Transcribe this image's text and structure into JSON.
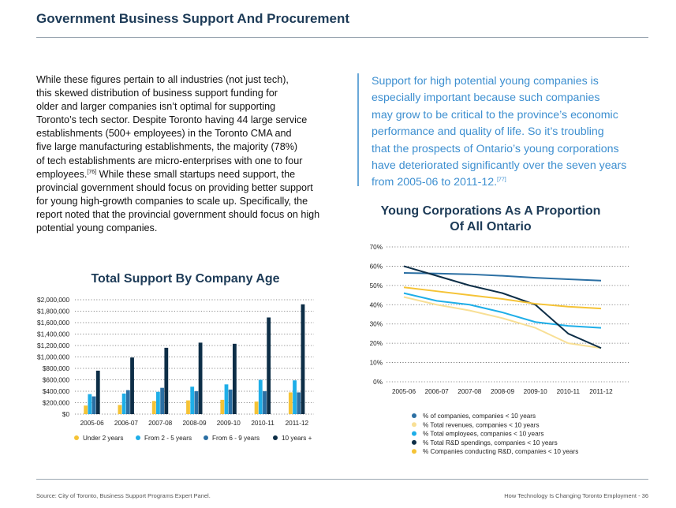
{
  "page": {
    "title": "Government Business Support And Procurement"
  },
  "body": {
    "lines": [
      "While these figures pertain to all industries (not just tech),",
      "this skewed distribution of business support funding for",
      "older and larger companies isn’t optimal for supporting",
      "Toronto’s tech sector. Despite Toronto having 44 large service",
      "establishments (500+ employees) in the Toronto CMA and",
      "five large manufacturing establishments, the majority (78%)",
      "of tech establishments are micro-enterprises with one to four",
      "employees.",
      "provincial government should focus on providing better support",
      "for young high-growth companies to scale up. Specifically, the",
      "report noted that the provincial government should focus on high",
      "potential young companies."
    ],
    "ref76": "[76]",
    "line8_rest": " While these small startups need support, the"
  },
  "quote": {
    "lines": [
      "Support for high potential young companies is",
      "especially important because such companies",
      "may grow to be critical to the province’s economic",
      "performance and quality of life. So it’s troubling",
      "that the prospects of Ontario’s young corporations",
      "have deteriorated significantly over the seven years",
      "from 2005-06 to 2011-12."
    ],
    "ref77": "[77]"
  },
  "bar_chart_title": "Total Support By Company Age",
  "line_chart_title_1": "Young Corporations As A Proportion",
  "line_chart_title_2": "Of All Ontario",
  "chart_data": [
    {
      "type": "bar",
      "title": "Total Support By Company Age",
      "categories": [
        "2005-06",
        "2006-07",
        "2007-08",
        "2008-09",
        "2009-10",
        "2010-11",
        "2011-12"
      ],
      "y_ticks": [
        "$0",
        "$200,000",
        "$400,000",
        "$600,000",
        "$800,000",
        "$1,000,000",
        "$1,200,000",
        "$1,400,000",
        "$1,600,000",
        "$1,800,000",
        "$2,000,000"
      ],
      "ylim": [
        0,
        2000000
      ],
      "grid": true,
      "legend_position": "bottom",
      "series": [
        {
          "name": "Under 2 years",
          "color": "#f5c336",
          "values": [
            150000,
            160000,
            230000,
            240000,
            250000,
            220000,
            380000
          ]
        },
        {
          "name": "From 2 - 5 years",
          "color": "#1eaee8",
          "values": [
            350000,
            360000,
            390000,
            480000,
            520000,
            600000,
            590000
          ]
        },
        {
          "name": "From 6 - 9 years",
          "color": "#2b6fa3",
          "values": [
            310000,
            420000,
            460000,
            400000,
            430000,
            400000,
            380000
          ]
        },
        {
          "name": "10 years +",
          "color": "#0d2e47",
          "values": [
            760000,
            990000,
            1160000,
            1250000,
            1230000,
            1690000,
            1920000
          ]
        }
      ]
    },
    {
      "type": "line",
      "title": "Young Corporations As A Proportion Of All Ontario",
      "x": [
        "2005-06",
        "2006-07",
        "2007-08",
        "2008-09",
        "2009-10",
        "2010-11",
        "2011-12"
      ],
      "y_ticks": [
        "0%",
        "10%",
        "20%",
        "30%",
        "40%",
        "50%",
        "60%",
        "70%"
      ],
      "ylim": [
        0,
        70
      ],
      "grid": true,
      "legend_position": "bottom",
      "series": [
        {
          "name": "% of companies, companies < 10 years",
          "color": "#2b6fa3",
          "values": [
            56.5,
            56.2,
            55.8,
            55,
            54,
            53.2,
            52.5
          ]
        },
        {
          "name": "% Total revenues, companies < 10 years",
          "color": "#f8df95",
          "values": [
            44,
            40,
            37,
            33,
            28,
            20,
            17.5
          ]
        },
        {
          "name": "% Total employees, companies < 10 years",
          "color": "#1eaee8",
          "values": [
            46,
            42,
            40,
            36,
            31,
            29,
            28
          ]
        },
        {
          "name": "% Total R&D spendings, companies < 10 years",
          "color": "#0d2e47",
          "values": [
            60,
            55,
            50,
            46,
            40,
            25,
            17.5
          ]
        },
        {
          "name": "% Companies conducting R&D, companies < 10 years",
          "color": "#f5c336",
          "values": [
            49,
            47,
            45,
            43,
            40.5,
            39,
            38
          ]
        }
      ]
    }
  ],
  "footer": {
    "source": "Source: City of Toronto, Business Support Programs Expert Panel.",
    "page": "How Technology Is Changing Toronto Employment - 36"
  }
}
